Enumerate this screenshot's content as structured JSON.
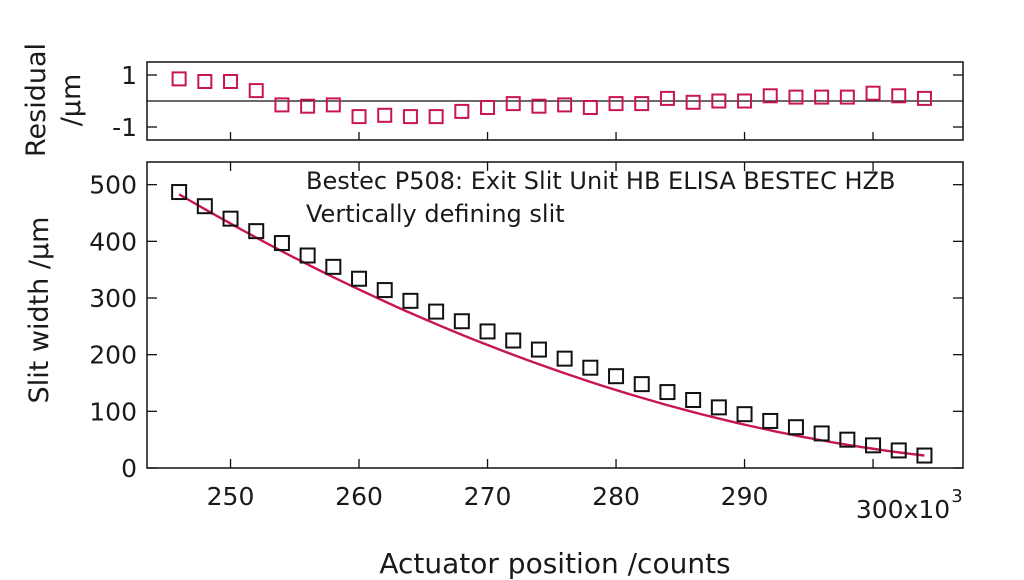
{
  "chart_data": [
    {
      "type": "scatter",
      "panel": "residual",
      "ylabel_line1": "Residual",
      "ylabel_line2": "/µm",
      "ylim": [
        -1.5,
        1.5
      ],
      "yticks": [
        1,
        -1
      ],
      "ytick_labels": [
        "1",
        "-1"
      ],
      "zero_line": true,
      "marker_color": "#c8174e",
      "series": [
        {
          "x": [
            246,
            248,
            250,
            252,
            254,
            256,
            258,
            260,
            262,
            264,
            266,
            268,
            270,
            272,
            274,
            276,
            278,
            280,
            282,
            284,
            286,
            288,
            290,
            292,
            294,
            296,
            298,
            300,
            302,
            304
          ],
          "y": [
            0.85,
            0.75,
            0.75,
            0.4,
            -0.15,
            -0.2,
            -0.15,
            -0.6,
            -0.55,
            -0.6,
            -0.6,
            -0.4,
            -0.25,
            -0.1,
            -0.2,
            -0.15,
            -0.25,
            -0.1,
            -0.1,
            0.1,
            -0.05,
            0.0,
            0.0,
            0.2,
            0.15,
            0.15,
            0.15,
            0.3,
            0.2,
            0.1
          ]
        }
      ]
    },
    {
      "type": "scatter",
      "panel": "main",
      "ylabel": "Slit width /µm",
      "xlabel": "Actuator position /counts",
      "annotation_line1": "Bestec P508: Exit Slit Unit HB ELISA BESTEC HZB",
      "annotation_line2": "Vertically defining slit",
      "xlim": [
        243.5,
        307
      ],
      "ylim": [
        0,
        540
      ],
      "xticks": [
        250,
        260,
        270,
        280,
        290,
        300
      ],
      "xtick_labels": [
        "250",
        "260",
        "270",
        "280",
        "290",
        "300x10"
      ],
      "x_multiplier_exponent": "3",
      "yticks": [
        0,
        100,
        200,
        300,
        400,
        500
      ],
      "ytick_labels": [
        "0",
        "100",
        "200",
        "300",
        "400",
        "500"
      ],
      "marker_color": "#111111",
      "fit_color": "#c8174e",
      "series": [
        {
          "x": [
            246,
            248,
            250,
            252,
            254,
            256,
            258,
            260,
            262,
            264,
            266,
            268,
            270,
            272,
            274,
            276,
            278,
            280,
            282,
            284,
            286,
            288,
            290,
            292,
            294,
            296,
            298,
            300,
            302,
            304
          ],
          "y": [
            487,
            462,
            440,
            418,
            397,
            375,
            355,
            334,
            314,
            295,
            276,
            259,
            241,
            225,
            209,
            193,
            177,
            162,
            148,
            134,
            120,
            107,
            95,
            83,
            72,
            61,
            50,
            40,
            31,
            22
          ]
        }
      ],
      "fit_x": [
        246,
        304
      ],
      "fit_y": [
        483,
        22
      ]
    }
  ]
}
